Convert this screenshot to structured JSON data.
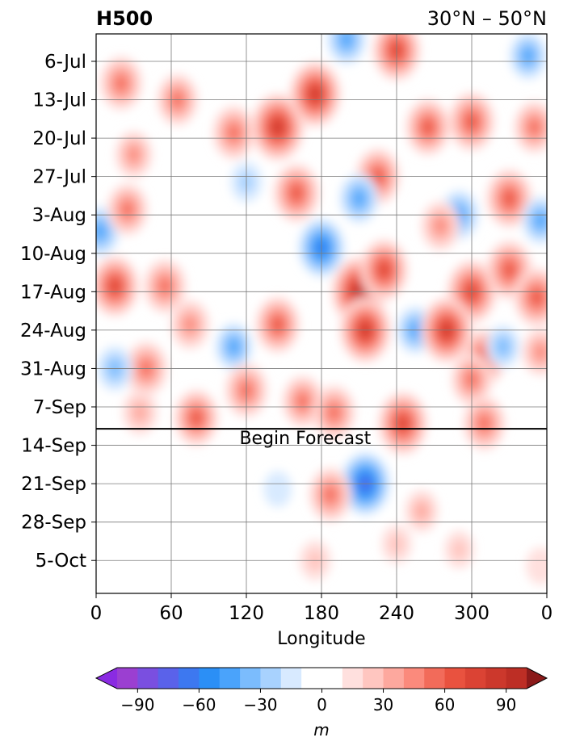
{
  "chart_data": {
    "type": "heatmap",
    "title_left": "H500",
    "title_right": "30°N – 50°N",
    "xlabel": "Longitude",
    "x_ticks": [
      "0",
      "60",
      "120",
      "180",
      "240",
      "300",
      "0"
    ],
    "x_tick_values": [
      0,
      60,
      120,
      180,
      240,
      300,
      360
    ],
    "xlim": [
      0,
      360
    ],
    "y_ticks": [
      "6-Jul",
      "13-Jul",
      "20-Jul",
      "27-Jul",
      "3-Aug",
      "10-Aug",
      "17-Aug",
      "24-Aug",
      "31-Aug",
      "7-Sep",
      "14-Sep",
      "21-Sep",
      "28-Sep",
      "5-Oct"
    ],
    "ylim_dates": [
      "2024-07-01",
      "2024-10-11"
    ],
    "annotation": "Begin Forecast",
    "forecast_start_date": "2024-09-11",
    "grid": true,
    "colorbar": {
      "label": "m",
      "ticks": [
        "−90",
        "−60",
        "−30",
        "0",
        "30",
        "60",
        "90"
      ],
      "tick_values": [
        -90,
        -60,
        -30,
        0,
        30,
        60,
        90
      ],
      "levels": [
        -100,
        -90,
        -80,
        -70,
        -60,
        -50,
        -40,
        -30,
        -20,
        -10,
        10,
        20,
        30,
        40,
        50,
        60,
        70,
        80,
        90,
        100
      ],
      "colors": [
        "#9b3fd1",
        "#7a4fe0",
        "#5a62ea",
        "#3d78f0",
        "#2b8ff6",
        "#4aa3fb",
        "#7bbcfd",
        "#a8d2fe",
        "#d8eaff",
        "#ffffff",
        "#ffe0de",
        "#ffc6c0",
        "#fda89e",
        "#fb8a7c",
        "#f26b5a",
        "#e9523f",
        "#db4334",
        "#cc382c",
        "#bd2e25"
      ],
      "extend_low_color": "#8a2be2",
      "extend_high_color": "#8b1a1a"
    },
    "anomalies": [
      {
        "lon": 20,
        "date": "2024-07-10",
        "value": 55
      },
      {
        "lon": 65,
        "date": "2024-07-13",
        "value": 50
      },
      {
        "lon": 200,
        "date": "2024-07-02",
        "value": -45
      },
      {
        "lon": 240,
        "date": "2024-07-04",
        "value": 70
      },
      {
        "lon": 345,
        "date": "2024-07-05",
        "value": -40
      },
      {
        "lon": 145,
        "date": "2024-07-18",
        "value": 85
      },
      {
        "lon": 175,
        "date": "2024-07-12",
        "value": 80
      },
      {
        "lon": 265,
        "date": "2024-07-18",
        "value": 60
      },
      {
        "lon": 300,
        "date": "2024-07-17",
        "value": 65
      },
      {
        "lon": 350,
        "date": "2024-07-18",
        "value": 50
      },
      {
        "lon": 110,
        "date": "2024-07-19",
        "value": 55
      },
      {
        "lon": 30,
        "date": "2024-07-23",
        "value": 40
      },
      {
        "lon": 225,
        "date": "2024-07-27",
        "value": 60
      },
      {
        "lon": 160,
        "date": "2024-07-30",
        "value": 65
      },
      {
        "lon": 210,
        "date": "2024-07-31",
        "value": -45
      },
      {
        "lon": 120,
        "date": "2024-07-28",
        "value": -25
      },
      {
        "lon": 330,
        "date": "2024-07-31",
        "value": 65
      },
      {
        "lon": 290,
        "date": "2024-08-03",
        "value": -45
      },
      {
        "lon": 355,
        "date": "2024-08-04",
        "value": -40
      },
      {
        "lon": 3,
        "date": "2024-08-06",
        "value": -45
      },
      {
        "lon": 25,
        "date": "2024-08-02",
        "value": 50
      },
      {
        "lon": 180,
        "date": "2024-08-09",
        "value": -65
      },
      {
        "lon": 275,
        "date": "2024-08-05",
        "value": 45
      },
      {
        "lon": 15,
        "date": "2024-08-16",
        "value": 70
      },
      {
        "lon": 55,
        "date": "2024-08-16",
        "value": 55
      },
      {
        "lon": 210,
        "date": "2024-08-17",
        "value": 90
      },
      {
        "lon": 230,
        "date": "2024-08-13",
        "value": 70
      },
      {
        "lon": 300,
        "date": "2024-08-17",
        "value": 75
      },
      {
        "lon": 330,
        "date": "2024-08-13",
        "value": 65
      },
      {
        "lon": 352,
        "date": "2024-08-18",
        "value": 65
      },
      {
        "lon": 145,
        "date": "2024-08-23",
        "value": 60
      },
      {
        "lon": 215,
        "date": "2024-08-24",
        "value": 80
      },
      {
        "lon": 255,
        "date": "2024-08-24",
        "value": -40
      },
      {
        "lon": 280,
        "date": "2024-08-24",
        "value": 80
      },
      {
        "lon": 110,
        "date": "2024-08-27",
        "value": -40
      },
      {
        "lon": 75,
        "date": "2024-08-23",
        "value": 45
      },
      {
        "lon": 40,
        "date": "2024-08-31",
        "value": 55
      },
      {
        "lon": 15,
        "date": "2024-08-31",
        "value": -35
      },
      {
        "lon": 310,
        "date": "2024-08-29",
        "value": 60
      },
      {
        "lon": 325,
        "date": "2024-08-27",
        "value": -30
      },
      {
        "lon": 355,
        "date": "2024-08-28",
        "value": 40
      },
      {
        "lon": 120,
        "date": "2024-09-04",
        "value": 55
      },
      {
        "lon": 165,
        "date": "2024-09-06",
        "value": 50
      },
      {
        "lon": 300,
        "date": "2024-09-02",
        "value": 50
      },
      {
        "lon": 80,
        "date": "2024-09-09",
        "value": 60
      },
      {
        "lon": 190,
        "date": "2024-09-08",
        "value": 55
      },
      {
        "lon": 245,
        "date": "2024-09-10",
        "value": 75
      },
      {
        "lon": 310,
        "date": "2024-09-10",
        "value": 55
      },
      {
        "lon": 35,
        "date": "2024-09-08",
        "value": 35
      },
      {
        "lon": 215,
        "date": "2024-09-21",
        "value": -75
      },
      {
        "lon": 187,
        "date": "2024-09-23",
        "value": 55
      },
      {
        "lon": 260,
        "date": "2024-09-26",
        "value": 30
      },
      {
        "lon": 240,
        "date": "2024-10-02",
        "value": 22
      },
      {
        "lon": 175,
        "date": "2024-10-05",
        "value": 25
      },
      {
        "lon": 290,
        "date": "2024-10-03",
        "value": 20
      },
      {
        "lon": 145,
        "date": "2024-09-22",
        "value": -15
      },
      {
        "lon": 355,
        "date": "2024-10-06",
        "value": 18
      }
    ]
  }
}
